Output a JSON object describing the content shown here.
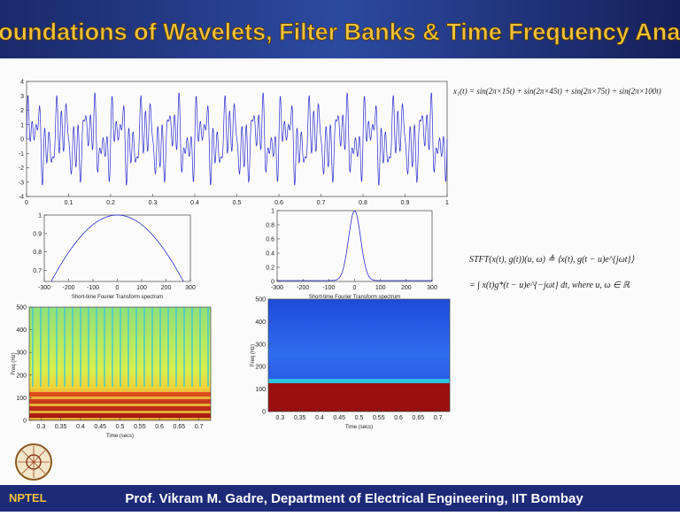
{
  "header": {
    "title": "Foundations of Wavelets, Filter Banks & Time Frequency Analysis"
  },
  "signal_plot": {
    "xlim": [
      0,
      1
    ],
    "ylim": [
      -4,
      4
    ],
    "xticks": [
      0,
      0.1,
      0.2,
      0.3,
      0.4,
      0.5,
      0.6,
      0.7,
      0.8,
      0.9,
      1
    ],
    "yticks": [
      4,
      3,
      2,
      1,
      0,
      -1,
      -2,
      -3,
      -4
    ],
    "frequencies_hz": [
      15,
      45,
      75,
      100
    ]
  },
  "signal_formula": "x₁(t) = sin(2π×15t) + sin(2π×45t) + sin(2π×75t) + sin(2π×100t)",
  "window_left": {
    "xlim": [
      -300,
      300
    ],
    "ylim": [
      0.64,
      1
    ],
    "xticks": [
      -300,
      -200,
      -100,
      0,
      100,
      200,
      300
    ],
    "yticks": [
      1,
      0.9,
      0.8,
      0.7
    ],
    "caption": "Short-time Fourier Transform spectrum"
  },
  "window_right": {
    "xlim": [
      -300,
      300
    ],
    "ylim": [
      0,
      1
    ],
    "xticks": [
      -300,
      -200,
      -100,
      0,
      100,
      200,
      300
    ],
    "yticks": [
      1,
      0.8,
      0.6,
      0.4,
      0.2,
      0
    ],
    "caption": "Short-time Fourier Transform spectrum"
  },
  "stft_formula": [
    "STFT(x(t), g(t))(u, ω) ≜ ⟨x(t), g(t − u)e^{jωt}⟩",
    "= ∫ x(t)g*(t − u)e^{−jωt} dt, where u, ω ∈ ℝ"
  ],
  "spectrogram_left": {
    "xlim": [
      0.27,
      0.73
    ],
    "ylim": [
      0,
      500
    ],
    "xticks": [
      0.3,
      0.35,
      0.4,
      0.45,
      0.5,
      0.55,
      0.6,
      0.65,
      0.7
    ],
    "yticks": [
      500,
      400,
      300,
      200,
      100,
      0
    ],
    "ylabel": "Freq (Hz)",
    "xlabel": "Time (secs)"
  },
  "spectrogram_right": {
    "xlim": [
      0.27,
      0.73
    ],
    "ylim": [
      0,
      500
    ],
    "xticks": [
      0.3,
      0.35,
      0.4,
      0.45,
      0.5,
      0.55,
      0.6,
      0.65,
      0.7
    ],
    "yticks": [
      500,
      400,
      300,
      200,
      100,
      0
    ],
    "ylabel": "Freq (Hz)",
    "xlabel": "Time (secs)"
  },
  "footer": {
    "logo": "NPTEL",
    "text": "Prof. Vikram M. Gadre, Department of Electrical Engineering, IIT Bombay"
  }
}
